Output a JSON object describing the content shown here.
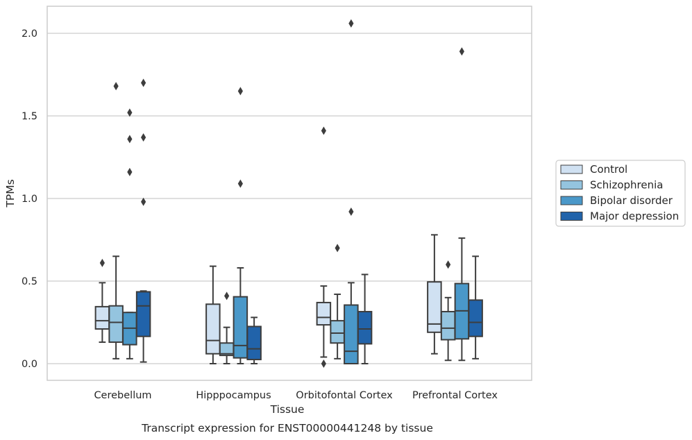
{
  "chart_data": {
    "type": "box",
    "title": "",
    "caption": "Transcript expression for ENST00000441248 by tissue",
    "xlabel": "Tissue",
    "ylabel": "TPMs",
    "ylim": [
      -0.1,
      2.16
    ],
    "yticks": [
      0.0,
      0.5,
      1.0,
      1.5,
      2.0
    ],
    "ytick_labels": [
      "0.0",
      "0.5",
      "1.0",
      "1.5",
      "2.0"
    ],
    "grid": "horizontal",
    "legend_position": "outside-right",
    "categories": [
      "Cerebellum",
      "Hipppocampus",
      "Orbitofontal Cortex",
      "Prefrontal Cortex"
    ],
    "series": [
      {
        "name": "Control",
        "color": "#d0e1f2",
        "boxes": [
          {
            "whislo": 0.13,
            "q1": 0.21,
            "med": 0.26,
            "q3": 0.345,
            "whishi": 0.49,
            "fliers": [
              0.61
            ]
          },
          {
            "whislo": 0.0,
            "q1": 0.06,
            "med": 0.14,
            "q3": 0.36,
            "whishi": 0.59,
            "fliers": []
          },
          {
            "whislo": 0.04,
            "q1": 0.235,
            "med": 0.28,
            "q3": 0.37,
            "whishi": 0.47,
            "fliers": [
              0.0,
              1.41
            ]
          },
          {
            "whislo": 0.06,
            "q1": 0.19,
            "med": 0.24,
            "q3": 0.495,
            "whishi": 0.78,
            "fliers": []
          }
        ]
      },
      {
        "name": "Schizophrenia",
        "color": "#94c4df",
        "boxes": [
          {
            "whislo": 0.03,
            "q1": 0.13,
            "med": 0.25,
            "q3": 0.35,
            "whishi": 0.65,
            "fliers": [
              1.68
            ]
          },
          {
            "whislo": 0.0,
            "q1": 0.05,
            "med": 0.06,
            "q3": 0.125,
            "whishi": 0.22,
            "fliers": [
              0.41
            ]
          },
          {
            "whislo": 0.03,
            "q1": 0.125,
            "med": 0.185,
            "q3": 0.26,
            "whishi": 0.42,
            "fliers": [
              0.7
            ]
          },
          {
            "whislo": 0.02,
            "q1": 0.145,
            "med": 0.215,
            "q3": 0.315,
            "whishi": 0.4,
            "fliers": [
              0.6
            ]
          }
        ]
      },
      {
        "name": "Bipolar disorder",
        "color": "#4a98c9",
        "boxes": [
          {
            "whislo": 0.03,
            "q1": 0.115,
            "med": 0.215,
            "q3": 0.31,
            "whishi": 0.31,
            "fliers": [
              1.16,
              1.36,
              1.52
            ]
          },
          {
            "whislo": 0.0,
            "q1": 0.035,
            "med": 0.11,
            "q3": 0.405,
            "whishi": 0.58,
            "fliers": [
              1.09,
              1.65
            ]
          },
          {
            "whislo": 0.0,
            "q1": 0.0,
            "med": 0.075,
            "q3": 0.355,
            "whishi": 0.49,
            "fliers": [
              0.92,
              2.06
            ]
          },
          {
            "whislo": 0.02,
            "q1": 0.15,
            "med": 0.32,
            "q3": 0.485,
            "whishi": 0.76,
            "fliers": [
              1.89
            ]
          }
        ]
      },
      {
        "name": "Major depression",
        "color": "#2163aa",
        "boxes": [
          {
            "whislo": 0.01,
            "q1": 0.165,
            "med": 0.35,
            "q3": 0.435,
            "whishi": 0.44,
            "fliers": [
              0.98,
              1.37,
              1.7
            ]
          },
          {
            "whislo": 0.0,
            "q1": 0.025,
            "med": 0.09,
            "q3": 0.225,
            "whishi": 0.28,
            "fliers": []
          },
          {
            "whislo": 0.0,
            "q1": 0.12,
            "med": 0.21,
            "q3": 0.315,
            "whishi": 0.54,
            "fliers": []
          },
          {
            "whislo": 0.03,
            "q1": 0.165,
            "med": 0.25,
            "q3": 0.385,
            "whishi": 0.65,
            "fliers": []
          }
        ]
      }
    ]
  }
}
